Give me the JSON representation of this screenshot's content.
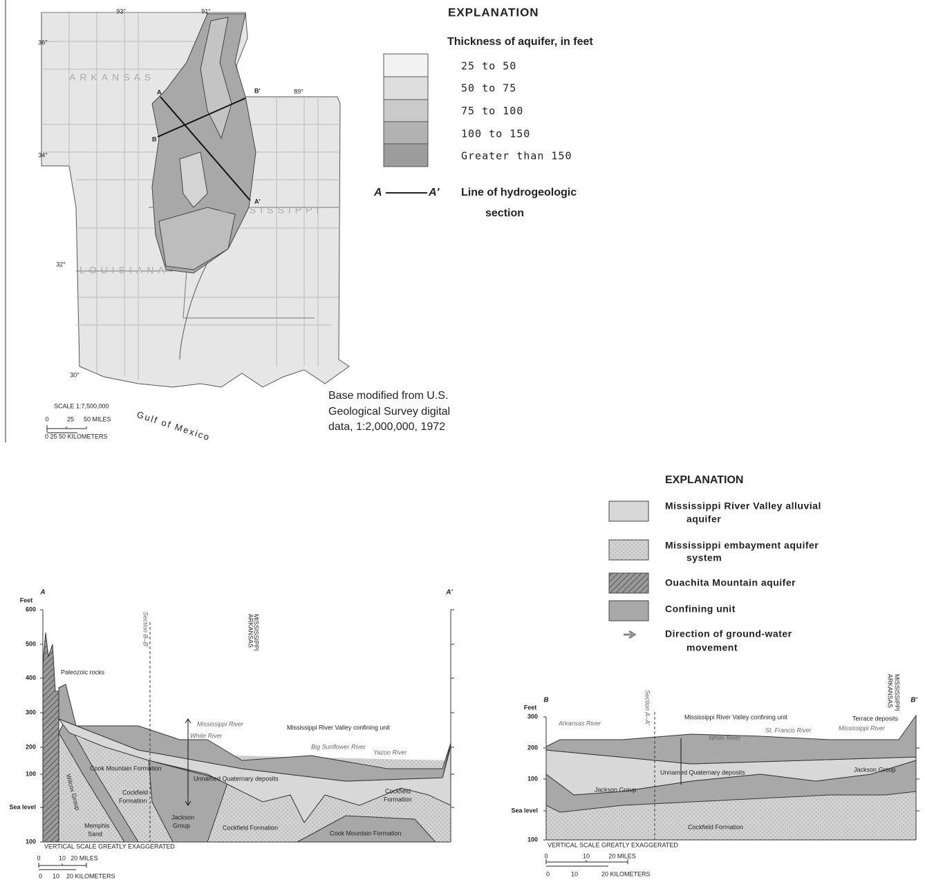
{
  "map": {
    "longitudes": [
      "93°",
      "91°",
      "89°"
    ],
    "latitudes": [
      "36°",
      "34°",
      "32°",
      "30°"
    ],
    "states": [
      "ARKANSAS",
      "MISSISSIPPI",
      "LOUISIANA"
    ],
    "section_ends": [
      "A",
      "A'",
      "B",
      "B'"
    ],
    "scale": {
      "title": "SCALE 1:7,500,000",
      "miles": [
        "0",
        "25",
        "50 MILES"
      ],
      "kilometers": "0  25 50  KILOMETERS"
    },
    "gulf": "Gulf of Mexico",
    "base_note": [
      "Base modified from U.S.",
      "Geological Survey digital",
      "data, 1:2,000,000, 1972"
    ]
  },
  "thickness_legend": {
    "title": "EXPLANATION",
    "subtitle": "Thickness of aquifer, in feet",
    "items": [
      "25 to 50",
      "50 to 75",
      "75 to 100",
      "100 to 150",
      "Greater than 150"
    ],
    "line": {
      "start": "A",
      "end": "A'",
      "label": [
        "Line of hydrogeologic",
        "section"
      ]
    }
  },
  "unit_legend": {
    "title": "EXPLANATION",
    "items": [
      [
        "Mississippi River Valley alluvial",
        "aquifer"
      ],
      [
        "Mississippi embayment aquifer",
        "system"
      ],
      [
        "Ouachita Mountain aquifer"
      ],
      [
        "Confining unit"
      ],
      [
        "Direction of ground-water",
        "movement"
      ]
    ]
  },
  "section_a": {
    "ends": [
      "A",
      "A'"
    ],
    "axis": [
      "Feet",
      "600",
      "500",
      "400",
      "300",
      "200",
      "100",
      "Sea level",
      "100"
    ],
    "labels": [
      "Paleozoic rocks",
      "Section B–B'",
      "ARKANSAS",
      "MISSISSIPPI",
      "Mississippi River",
      "White River",
      "Mississippi River Valley confining unit",
      "Big Sunflower River",
      "Yazoo River",
      "Cook Mountain Formation",
      "Unnamed Quaternary deposits",
      "Cockfield",
      "Formation",
      "Wilcox Group",
      "Memphis",
      "Sand",
      "Jackson",
      "Group",
      "Cockfield Formation",
      "Cook Mountain Formation",
      "Cockfield",
      "Formation"
    ],
    "note": "VERTICAL SCALE GREATLY EXAGGERATED",
    "scale": {
      "miles": [
        "0",
        "10",
        "20 MILES"
      ],
      "kilometers": [
        "0",
        "10",
        "20 KILOMETERS"
      ]
    }
  },
  "section_b": {
    "ends": [
      "B",
      "B'"
    ],
    "axis": [
      "Feet",
      "300",
      "200",
      "100",
      "Sea level",
      "100"
    ],
    "labels": [
      "Arkansas River",
      "Section A–A'",
      "Mississippi River Valley confining unit",
      "White River",
      "St. Francis River",
      "Mississippi River",
      "Terrace deposits",
      "ARKANSAS",
      "MISSISSIPPI",
      "Unnamed Quaternary deposits",
      "Jackson Group",
      "Jackson Group",
      "Cockfield Formation"
    ],
    "note": "VERTICAL SCALE GREATLY EXAGGERATED",
    "scale": {
      "miles": [
        "0",
        "10",
        "20 MILES"
      ],
      "kilometers": [
        "0",
        "10",
        "20 KILOMETERS"
      ]
    }
  }
}
